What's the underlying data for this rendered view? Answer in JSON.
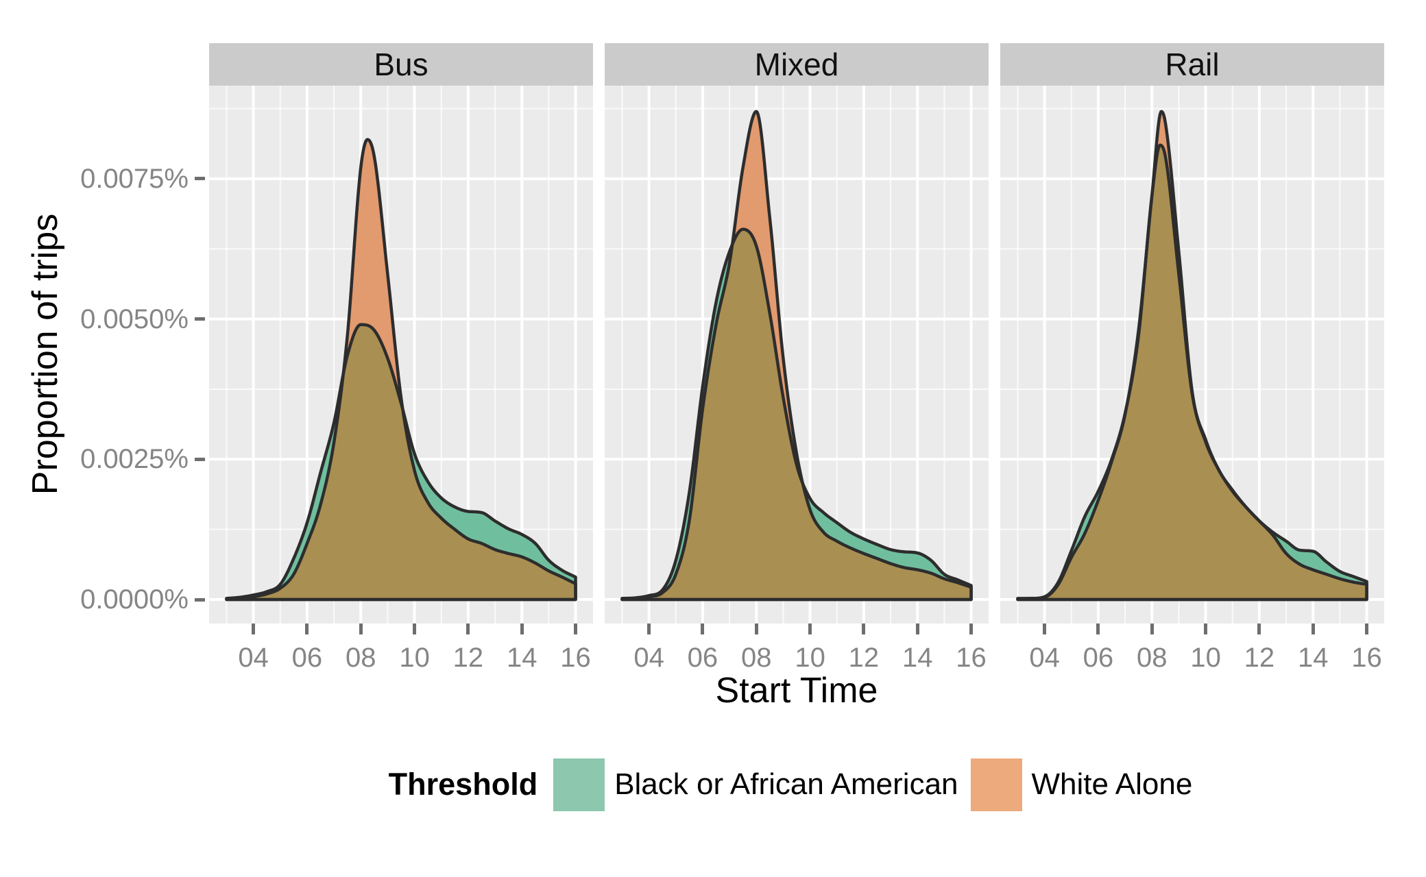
{
  "chart": {
    "facet_strips": [
      "Bus",
      "Mixed",
      "Rail"
    ],
    "x_axis_title": "Start Time",
    "y_axis_title": "Proportion of trips",
    "x_tick_labels": [
      "04",
      "06",
      "08",
      "10",
      "12",
      "14",
      "16"
    ],
    "x_tick_values": [
      4,
      6,
      8,
      10,
      12,
      14,
      16
    ],
    "y_tick_labels": [
      "0.0000%",
      "0.0025%",
      "0.0050%",
      "0.0075%"
    ],
    "y_tick_values": [
      0,
      0.0025,
      0.005,
      0.0075
    ],
    "legend": {
      "title": "Threshold",
      "entries": [
        {
          "label": "Black or African American",
          "swatch_color": "#8CC7AE"
        },
        {
          "label": "White Alone",
          "swatch_color": "#EDAA7D"
        }
      ]
    },
    "colors": {
      "panel_background": "#EBEBEB",
      "strip_background": "#cbcbcb",
      "grid_major": "#FFFFFF",
      "grid_minor": "rgba(255,255,255,0.75)",
      "fill_black": "#6FBF9E",
      "fill_white": "#E29A6F",
      "fill_overlap": "#AA8F52",
      "curve_stroke": "#2D2D2D",
      "axis_text": "#858585",
      "tick_mark": "#6e6e6e"
    }
  },
  "chart_data": {
    "type": "area",
    "subtype": "faceted-density",
    "xlabel": "Start Time",
    "ylabel": "Proportion of trips",
    "xlim": [
      2.35,
      16.65
    ],
    "ylim": [
      -0.00043,
      0.00916
    ],
    "x_units": "hour of day",
    "y_units": "percent",
    "legend_position": "bottom",
    "grid": true,
    "facets": [
      {
        "label": "Bus",
        "series": [
          {
            "name": "Black or African American",
            "x": [
              3,
              3.5,
              4,
              4.5,
              5,
              5.5,
              6,
              6.5,
              7,
              7.5,
              8,
              8.5,
              9,
              9.5,
              10,
              10.5,
              11,
              11.5,
              12,
              12.5,
              13,
              13.5,
              14,
              14.5,
              15,
              15.5,
              16
            ],
            "y": [
              2e-05,
              4e-05,
              8e-05,
              0.00014,
              0.00027,
              0.00073,
              0.00137,
              0.00226,
              0.00315,
              0.00435,
              0.0049,
              0.0048,
              0.0043,
              0.0035,
              0.0026,
              0.0021,
              0.00181,
              0.00165,
              0.00157,
              0.00155,
              0.0014,
              0.00126,
              0.00116,
              0.001,
              0.0007,
              0.00052,
              0.0004
            ]
          },
          {
            "name": "White Alone",
            "x": [
              3,
              3.5,
              4,
              4.5,
              5,
              5.5,
              6,
              6.5,
              7,
              7.5,
              8,
              8.25,
              8.5,
              9,
              9.5,
              10,
              10.5,
              11,
              11.5,
              12,
              12.5,
              13,
              13.5,
              14,
              14.5,
              15,
              15.5,
              16
            ],
            "y": [
              1e-05,
              2e-05,
              5e-05,
              0.0001,
              0.0002,
              0.00045,
              0.001,
              0.00169,
              0.0028,
              0.0047,
              0.0077,
              0.0082,
              0.0079,
              0.0058,
              0.0036,
              0.0023,
              0.00173,
              0.00145,
              0.00125,
              0.00108,
              0.001,
              0.00089,
              0.00082,
              0.00076,
              0.00065,
              0.00051,
              0.0004,
              0.00028
            ]
          }
        ]
      },
      {
        "label": "Mixed",
        "series": [
          {
            "name": "Black or African American",
            "x": [
              3,
              3.5,
              4,
              4.5,
              5,
              5.5,
              6,
              6.5,
              7,
              7.5,
              8,
              8.5,
              9,
              9.5,
              10,
              10.5,
              11,
              11.5,
              12,
              12.5,
              13,
              13.5,
              14,
              14.5,
              15,
              15.5,
              16
            ],
            "y": [
              2e-05,
              3e-05,
              7e-05,
              0.00017,
              0.0007,
              0.0019,
              0.0038,
              0.0053,
              0.0062,
              0.0066,
              0.0063,
              0.0051,
              0.0036,
              0.0024,
              0.0018,
              0.00155,
              0.00137,
              0.0012,
              0.00108,
              0.00098,
              0.00089,
              0.00085,
              0.00083,
              0.0007,
              0.00045,
              0.00035,
              0.00025
            ]
          },
          {
            "name": "White Alone",
            "x": [
              3,
              3.5,
              4,
              4.5,
              5,
              5.5,
              6,
              6.5,
              7,
              7.5,
              8,
              8.5,
              9,
              9.5,
              10,
              10.5,
              11,
              11.5,
              12,
              12.5,
              13,
              13.5,
              14,
              14.5,
              15,
              15.5,
              16
            ],
            "y": [
              1e-05,
              2e-05,
              5e-05,
              0.00012,
              0.00045,
              0.0014,
              0.0034,
              0.0049,
              0.006,
              0.0077,
              0.0087,
              0.0068,
              0.0043,
              0.0026,
              0.0016,
              0.0012,
              0.00104,
              0.00092,
              0.00082,
              0.00073,
              0.00064,
              0.00057,
              0.00053,
              0.00047,
              0.00037,
              0.0003,
              0.00022
            ]
          }
        ]
      },
      {
        "label": "Rail",
        "series": [
          {
            "name": "Black or African American",
            "x": [
              3,
              3.5,
              4,
              4.5,
              5,
              5.5,
              6,
              6.5,
              7,
              7.5,
              8,
              8.3,
              8.5,
              9,
              9.5,
              10,
              10.5,
              11,
              11.5,
              12,
              12.5,
              13,
              13.5,
              14,
              14.5,
              15,
              15.5,
              16
            ],
            "y": [
              2e-05,
              2e-05,
              5e-05,
              0.0003,
              0.00087,
              0.00148,
              0.00193,
              0.0025,
              0.00332,
              0.0047,
              0.0072,
              0.0081,
              0.0079,
              0.0058,
              0.00366,
              0.00281,
              0.0023,
              0.00193,
              0.00165,
              0.0014,
              0.0012,
              0.00104,
              0.00088,
              0.00086,
              0.00067,
              0.0005,
              0.00041,
              0.00032
            ]
          },
          {
            "name": "White Alone",
            "x": [
              3,
              3.5,
              4,
              4.5,
              5,
              5.5,
              6,
              6.5,
              7,
              7.5,
              8,
              8.35,
              8.5,
              9,
              9.5,
              10,
              10.5,
              11,
              11.5,
              12,
              12.5,
              13,
              13.5,
              14,
              14.5,
              15,
              15.5,
              16
            ],
            "y": [
              1e-05,
              2e-05,
              4e-05,
              0.00026,
              0.00075,
              0.00118,
              0.00177,
              0.00246,
              0.0033,
              0.0048,
              0.0072,
              0.0087,
              0.0085,
              0.0062,
              0.0037,
              0.00285,
              0.0023,
              0.00195,
              0.00165,
              0.0014,
              0.00115,
              0.00082,
              0.00063,
              0.00053,
              0.00045,
              0.00037,
              0.00031,
              0.00027
            ]
          }
        ]
      }
    ]
  }
}
